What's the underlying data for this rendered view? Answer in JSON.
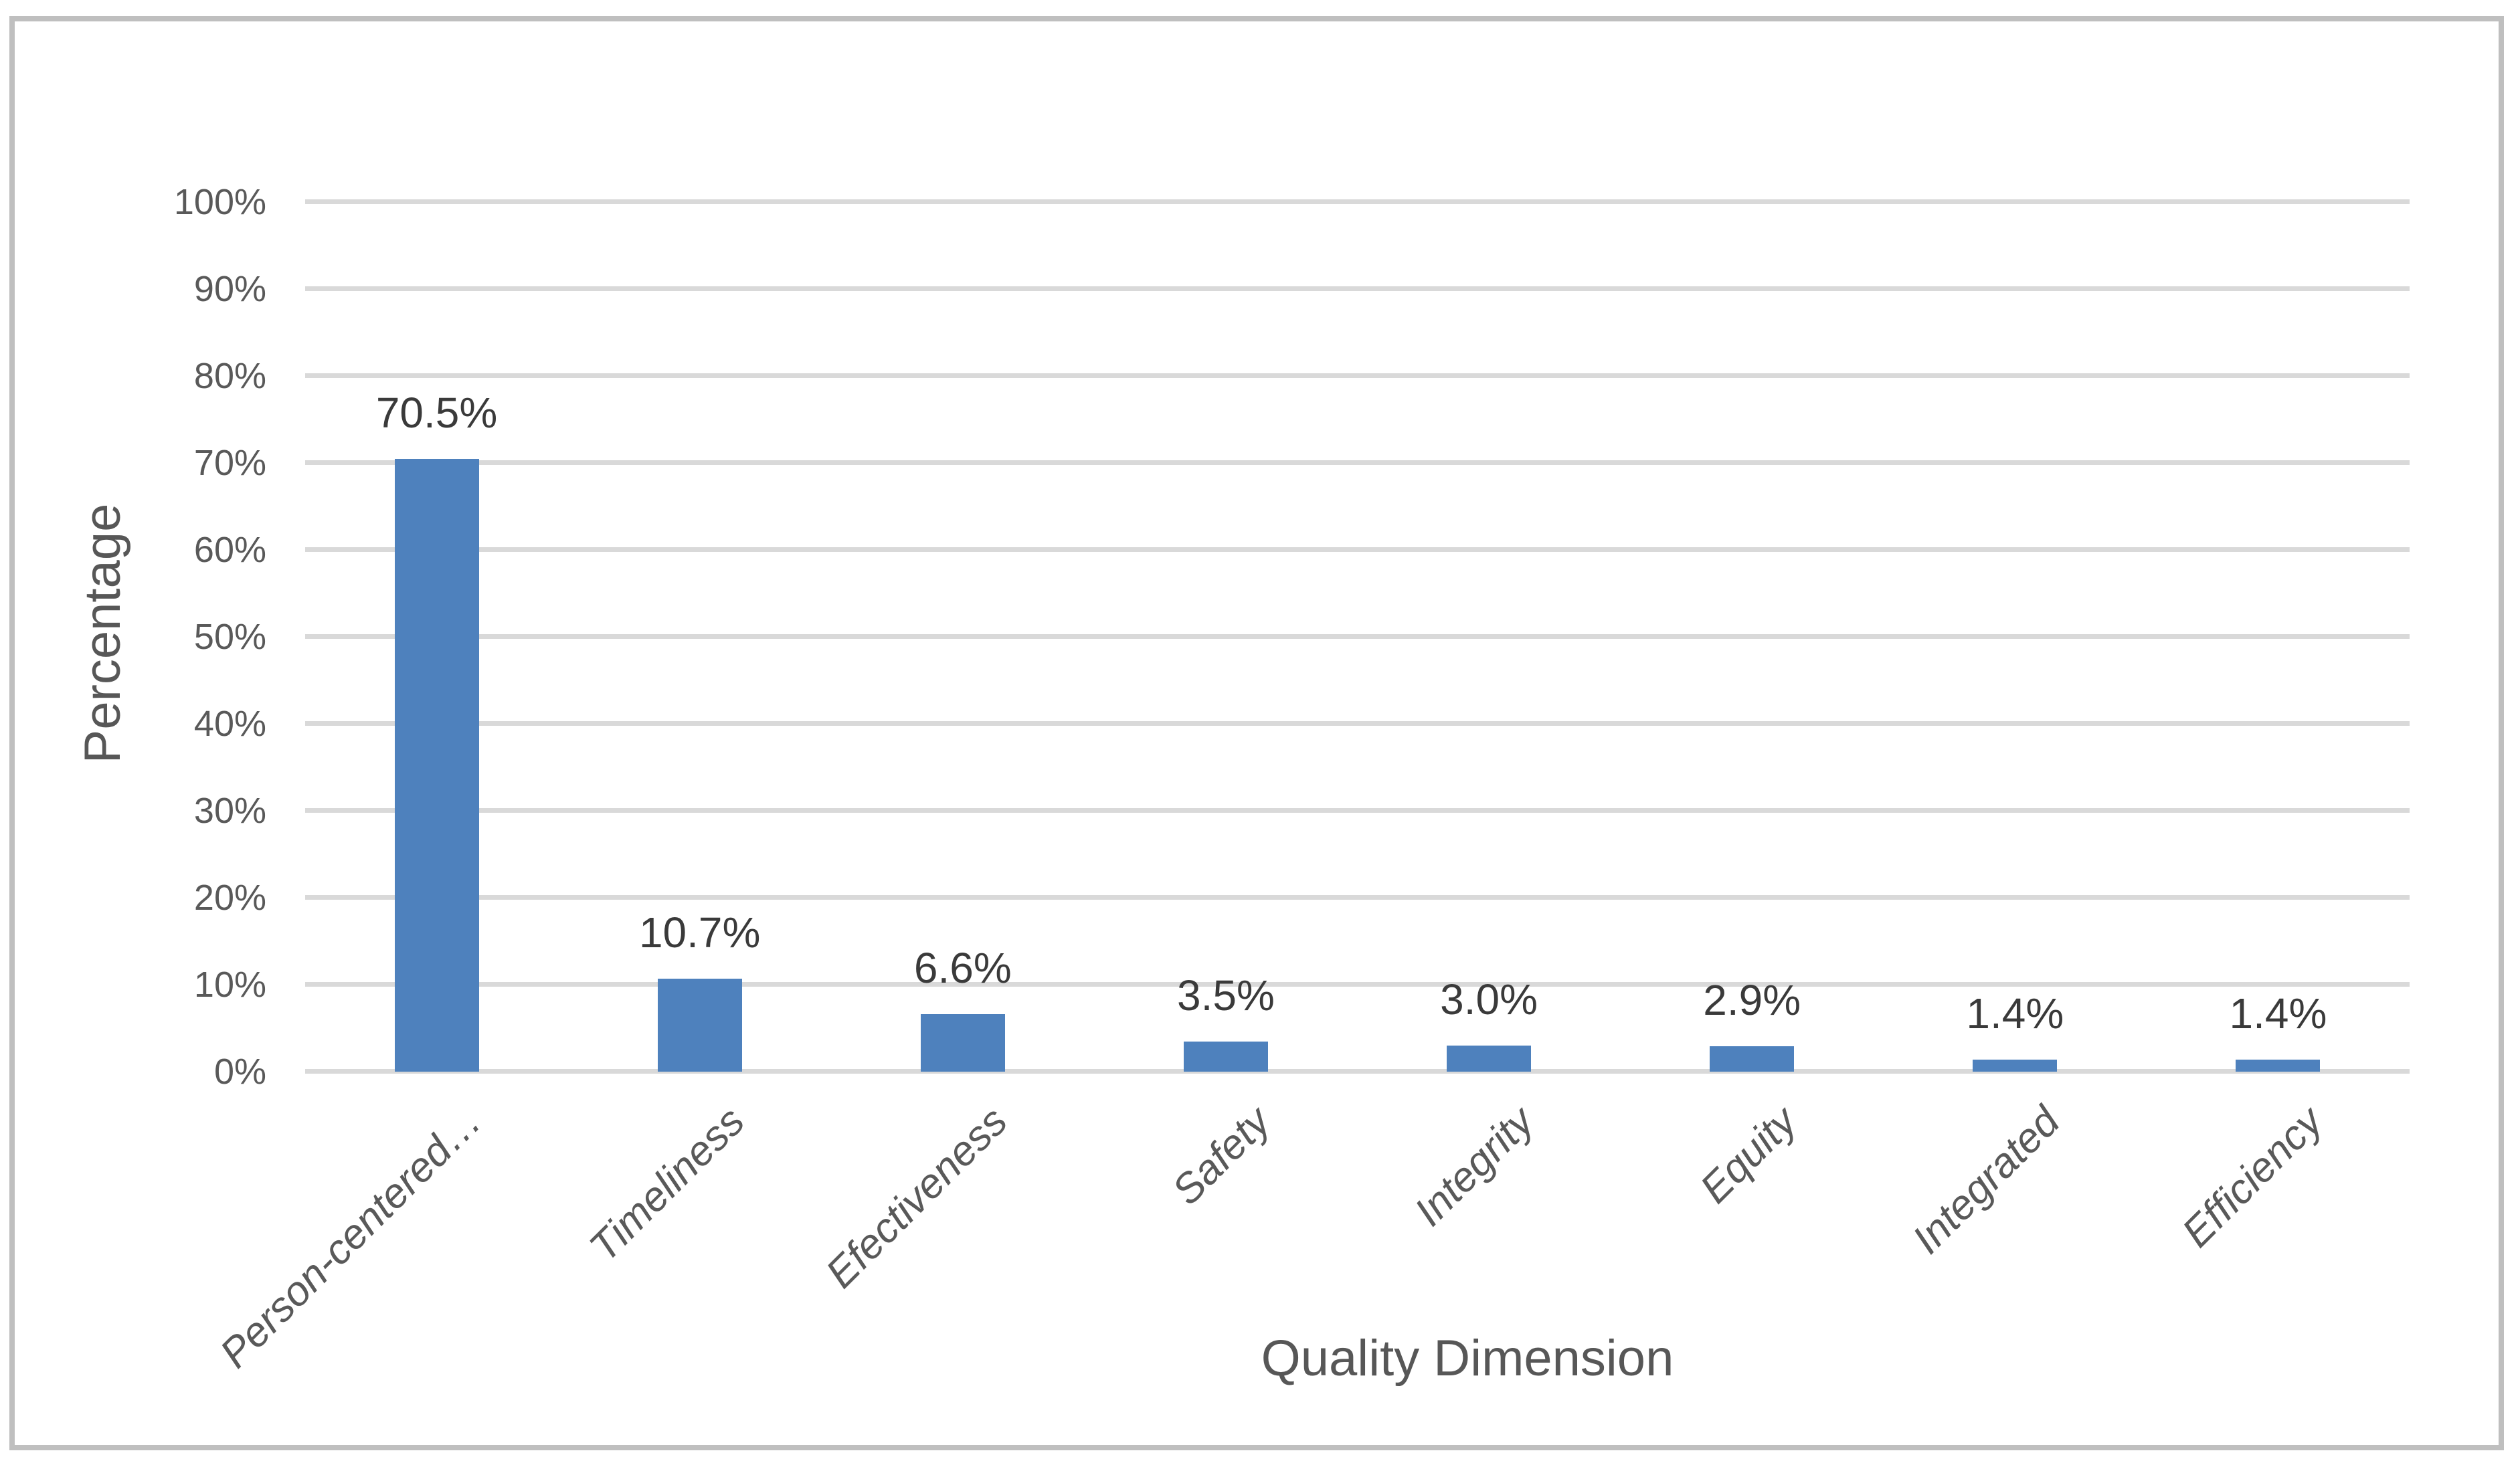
{
  "figure": {
    "background": "#FFFFFF",
    "frame_border_color": "#BFBFBF"
  },
  "chart_data": {
    "type": "bar",
    "title": "",
    "xlabel": "Quality Dimension",
    "ylabel": "Percentage",
    "categories": [
      "Person-centered…",
      "Timeliness",
      "Efectiveness",
      "Safety",
      "Integrity",
      "Equity",
      "Integrated",
      "Efficiency"
    ],
    "values": [
      70.5,
      10.7,
      6.6,
      3.5,
      3.0,
      2.9,
      1.4,
      1.4
    ],
    "bar_labels": [
      "70.5%",
      "10.7%",
      "6.6%",
      "3.5%",
      "3.0%",
      "2.9%",
      "1.4%",
      "1.4%"
    ],
    "y_ticks": [
      "0%",
      "10%",
      "20%",
      "30%",
      "40%",
      "50%",
      "60%",
      "70%",
      "80%",
      "90%",
      "100%"
    ],
    "ylim": [
      0,
      100
    ],
    "y_tick_step": 10,
    "grid": "horizontal",
    "legend": "none",
    "colors": {
      "bar": "#4E81BD",
      "gridline": "#D9D9D9",
      "tick_label": "#595959",
      "category_label": "#595959",
      "data_label": "#3A3A3A",
      "axis_title": "#575757"
    }
  }
}
